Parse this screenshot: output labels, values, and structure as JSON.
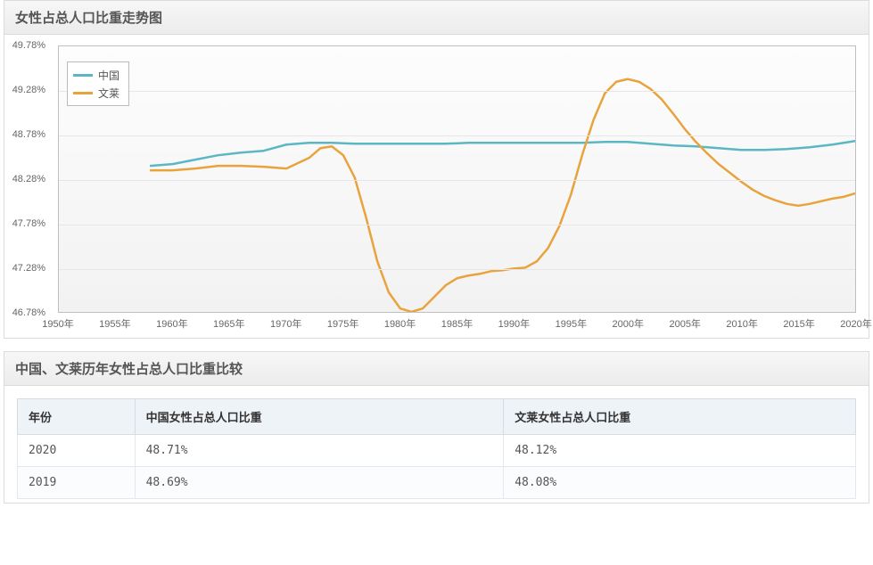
{
  "chart": {
    "title": "女性占总人口比重走势图",
    "type": "line",
    "background_gradient": [
      "#fdfdfd",
      "#f2f2f2"
    ],
    "border_color": "#bfbfbf",
    "grid_color": "#e6e6e6",
    "text_color": "#666666",
    "y_axis": {
      "min": 46.78,
      "max": 49.78,
      "step": 0.5,
      "ticks": [
        46.78,
        47.28,
        47.78,
        48.28,
        48.78,
        49.28,
        49.78
      ],
      "tick_labels": [
        "46.78%",
        "47.28%",
        "47.78%",
        "48.28%",
        "48.78%",
        "49.28%",
        "49.78%"
      ]
    },
    "x_axis": {
      "min": 1950,
      "max": 2020,
      "step": 5,
      "ticks": [
        1950,
        1955,
        1960,
        1965,
        1970,
        1975,
        1980,
        1985,
        1990,
        1995,
        2000,
        2005,
        2010,
        2015,
        2020
      ],
      "tick_labels": [
        "1950年",
        "1955年",
        "1960年",
        "1965年",
        "1970年",
        "1975年",
        "1980年",
        "1985年",
        "1990年",
        "1995年",
        "2000年",
        "2005年",
        "2010年",
        "2015年",
        "2020年"
      ]
    },
    "legend": {
      "position": "top-left",
      "items": [
        {
          "label": "中国",
          "color": "#5bb7c4"
        },
        {
          "label": "文莱",
          "color": "#e8a33d"
        }
      ]
    },
    "series": [
      {
        "name": "中国",
        "color": "#5bb7c4",
        "line_width": 2.5,
        "points": [
          [
            1958,
            48.43
          ],
          [
            1960,
            48.45
          ],
          [
            1962,
            48.5
          ],
          [
            1964,
            48.55
          ],
          [
            1966,
            48.58
          ],
          [
            1968,
            48.6
          ],
          [
            1970,
            48.67
          ],
          [
            1972,
            48.69
          ],
          [
            1974,
            48.69
          ],
          [
            1976,
            48.68
          ],
          [
            1978,
            48.68
          ],
          [
            1980,
            48.68
          ],
          [
            1982,
            48.68
          ],
          [
            1984,
            48.68
          ],
          [
            1986,
            48.69
          ],
          [
            1988,
            48.69
          ],
          [
            1990,
            48.69
          ],
          [
            1992,
            48.69
          ],
          [
            1994,
            48.69
          ],
          [
            1996,
            48.69
          ],
          [
            1998,
            48.7
          ],
          [
            2000,
            48.7
          ],
          [
            2002,
            48.68
          ],
          [
            2004,
            48.66
          ],
          [
            2006,
            48.65
          ],
          [
            2008,
            48.63
          ],
          [
            2010,
            48.61
          ],
          [
            2012,
            48.61
          ],
          [
            2014,
            48.62
          ],
          [
            2016,
            48.64
          ],
          [
            2018,
            48.67
          ],
          [
            2019,
            48.69
          ],
          [
            2020,
            48.71
          ]
        ]
      },
      {
        "name": "文莱",
        "color": "#e8a33d",
        "line_width": 2.5,
        "points": [
          [
            1958,
            48.38
          ],
          [
            1960,
            48.38
          ],
          [
            1962,
            48.4
          ],
          [
            1964,
            48.43
          ],
          [
            1966,
            48.43
          ],
          [
            1968,
            48.42
          ],
          [
            1970,
            48.4
          ],
          [
            1972,
            48.52
          ],
          [
            1973,
            48.63
          ],
          [
            1974,
            48.65
          ],
          [
            1975,
            48.55
          ],
          [
            1976,
            48.3
          ],
          [
            1977,
            47.85
          ],
          [
            1978,
            47.35
          ],
          [
            1979,
            47.0
          ],
          [
            1980,
            46.82
          ],
          [
            1981,
            46.78
          ],
          [
            1982,
            46.82
          ],
          [
            1983,
            46.95
          ],
          [
            1984,
            47.08
          ],
          [
            1985,
            47.16
          ],
          [
            1986,
            47.19
          ],
          [
            1987,
            47.21
          ],
          [
            1988,
            47.24
          ],
          [
            1989,
            47.25
          ],
          [
            1990,
            47.27
          ],
          [
            1991,
            47.28
          ],
          [
            1992,
            47.35
          ],
          [
            1993,
            47.5
          ],
          [
            1994,
            47.75
          ],
          [
            1995,
            48.1
          ],
          [
            1996,
            48.55
          ],
          [
            1997,
            48.95
          ],
          [
            1998,
            49.25
          ],
          [
            1999,
            49.38
          ],
          [
            2000,
            49.41
          ],
          [
            2001,
            49.38
          ],
          [
            2002,
            49.3
          ],
          [
            2003,
            49.18
          ],
          [
            2004,
            49.02
          ],
          [
            2005,
            48.85
          ],
          [
            2006,
            48.7
          ],
          [
            2007,
            48.57
          ],
          [
            2008,
            48.45
          ],
          [
            2009,
            48.35
          ],
          [
            2010,
            48.25
          ],
          [
            2011,
            48.16
          ],
          [
            2012,
            48.09
          ],
          [
            2013,
            48.04
          ],
          [
            2014,
            48.0
          ],
          [
            2015,
            47.98
          ],
          [
            2016,
            48.0
          ],
          [
            2017,
            48.03
          ],
          [
            2018,
            48.06
          ],
          [
            2019,
            48.08
          ],
          [
            2020,
            48.12
          ]
        ]
      }
    ]
  },
  "table": {
    "title": "中国、文莱历年女性占总人口比重比较",
    "columns": [
      "年份",
      "中国女性占总人口比重",
      "文莱女性占总人口比重"
    ],
    "column_widths": [
      "14%",
      "44%",
      "42%"
    ],
    "header_bg": "#eef3f8",
    "border_color": "#d4dde5",
    "rows": [
      [
        "2020",
        "48.71%",
        "48.12%"
      ],
      [
        "2019",
        "48.69%",
        "48.08%"
      ]
    ]
  }
}
